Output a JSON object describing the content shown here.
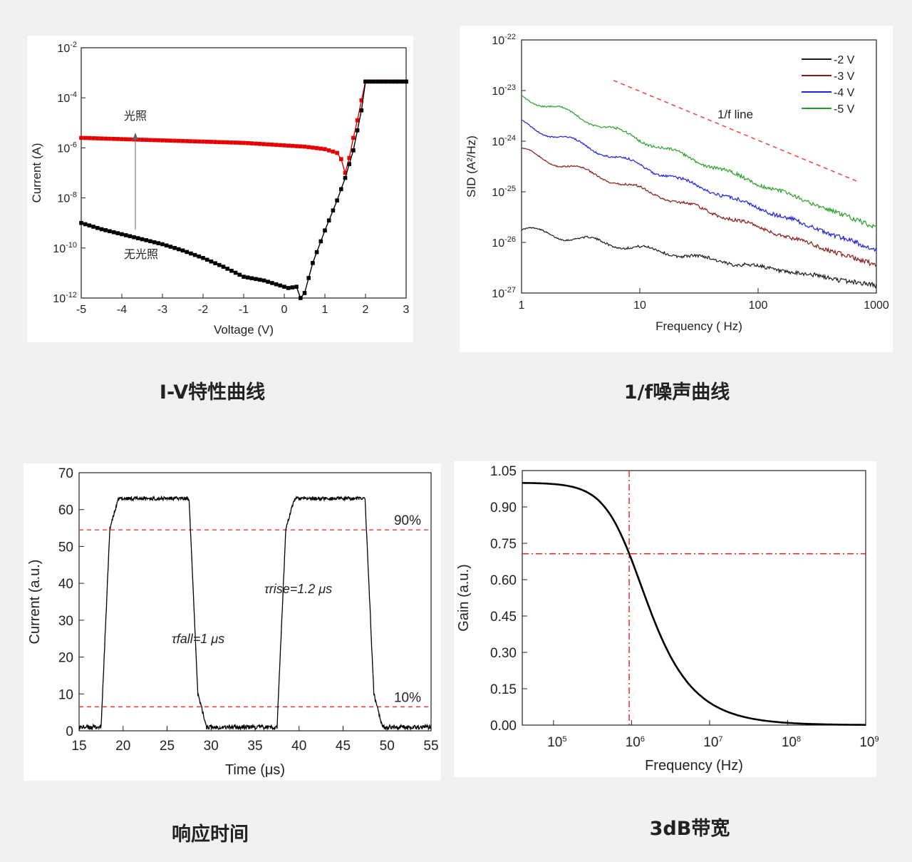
{
  "captions": {
    "iv": "I-V特性曲线",
    "noise": "1/f噪声曲线",
    "response": "响应时间",
    "bandwidth": "3dB带宽"
  },
  "chart_data": [
    {
      "id": "iv",
      "type": "line",
      "xlabel": "Voltage (V)",
      "ylabel": "Current (A)",
      "xlim": [
        -5,
        3
      ],
      "ylim_log10": [
        -12,
        -2
      ],
      "y_scale": "log",
      "x_ticks": [
        "-5",
        "-4",
        "-3",
        "-2",
        "-1",
        "0",
        "1",
        "2",
        "3"
      ],
      "y_tick_exponents": [
        "-2",
        "-4",
        "-6",
        "-8",
        "-10",
        "-12"
      ],
      "annotations": [
        "光照",
        "无光照"
      ],
      "series": [
        {
          "name": "光照",
          "color": "#e60000",
          "x": [
            -5,
            -4,
            -3,
            -2,
            -1,
            0,
            0.5,
            1,
            1.3,
            1.4,
            1.5,
            1.6,
            1.7,
            1.8,
            1.9,
            2,
            3
          ],
          "y_log10": [
            -5.6,
            -5.65,
            -5.7,
            -5.75,
            -5.8,
            -5.9,
            -5.95,
            -6.05,
            -6.2,
            -6.45,
            -7.0,
            -6.4,
            -5.6,
            -4.9,
            -4.1,
            -3.35,
            -3.35
          ]
        },
        {
          "name": "无光照",
          "color": "#000000",
          "x": [
            -5,
            -4.5,
            -4,
            -3.5,
            -3,
            -2.5,
            -2,
            -1.5,
            -1,
            -0.5,
            -0.2,
            0.1,
            0.3,
            0.4,
            0.5,
            0.7,
            1,
            1.3,
            1.5,
            1.7,
            1.9,
            2,
            3
          ],
          "y_log10": [
            -9.0,
            -9.25,
            -9.45,
            -9.65,
            -9.85,
            -10.1,
            -10.4,
            -10.75,
            -11.15,
            -11.3,
            -11.45,
            -11.6,
            -11.55,
            -12.0,
            -11.8,
            -10.6,
            -9.3,
            -8.1,
            -7.2,
            -6.1,
            -4.5,
            -3.35,
            -3.35
          ]
        }
      ]
    },
    {
      "id": "noise",
      "type": "line",
      "xlabel": "Frequency ( Hz)",
      "ylabel": "SID (A²/Hz)",
      "x_scale": "log",
      "y_scale": "log",
      "xlim": [
        1,
        1000
      ],
      "ylim_log10": [
        -27,
        -22
      ],
      "x_ticks": [
        "1",
        "10",
        "100",
        "1000"
      ],
      "y_tick_exponents": [
        "-22",
        "-23",
        "-24",
        "-25",
        "-26",
        "-27"
      ],
      "annotations": [
        "1/f line"
      ],
      "guide_line": {
        "x": [
          6,
          700
        ],
        "y_log10": [
          -22.8,
          -24.8
        ],
        "color": "#ee4444"
      },
      "series": [
        {
          "name": "-2 V",
          "color": "#1a1a1a",
          "start_log10": -25.75,
          "end_log10": -26.85
        },
        {
          "name": "-3 V",
          "color": "#8b1a1a",
          "start_log10": -24.2,
          "end_log10": -26.45
        },
        {
          "name": "-4 V",
          "color": "#1f1fe0",
          "start_log10": -23.65,
          "end_log10": -26.15
        },
        {
          "name": "-5 V",
          "color": "#2aa02a",
          "start_log10": -23.1,
          "end_log10": -25.7
        }
      ]
    },
    {
      "id": "response",
      "type": "line",
      "xlabel": "Time (μs)",
      "ylabel": "Current (a.u.)",
      "xlim": [
        15,
        55
      ],
      "ylim": [
        0,
        70
      ],
      "x_ticks": [
        "15",
        "20",
        "25",
        "30",
        "35",
        "40",
        "45",
        "50",
        "55"
      ],
      "y_ticks": [
        "0",
        "10",
        "20",
        "30",
        "40",
        "50",
        "60",
        "70"
      ],
      "threshold_lines": [
        {
          "label": "90%",
          "y": 54.5
        },
        {
          "label": "10%",
          "y": 6.5
        }
      ],
      "annotations": [
        "τfall=1 μs",
        "τrise=1.2 μs"
      ],
      "series": [
        {
          "name": "",
          "color": "#000000",
          "x": [
            15,
            17.5,
            18.5,
            19.5,
            27.5,
            28.5,
            29.5,
            37.5,
            38.5,
            39.5,
            47.5,
            48.5,
            49.5,
            55
          ],
          "y": [
            1,
            1,
            55,
            63,
            63,
            10,
            1,
            1,
            55,
            63,
            63,
            10,
            1,
            1
          ]
        }
      ]
    },
    {
      "id": "bandwidth",
      "type": "line",
      "xlabel": "Frequency (Hz)",
      "ylabel": "Gain (a.u.)",
      "x_scale": "log",
      "xlim_log10": [
        4.6,
        9
      ],
      "ylim": [
        0,
        1.05
      ],
      "x_tick_exponents": [
        "5",
        "6",
        "7",
        "8",
        "9"
      ],
      "y_ticks": [
        "1.05",
        "0.90",
        "0.75",
        "0.60",
        "0.45",
        "0.30",
        "0.15",
        "0.00"
      ],
      "cutoff": {
        "f_log10": 5.97,
        "gain": 0.707
      },
      "series": [
        {
          "name": "",
          "color": "#000000",
          "x_log10": [
            4.6,
            5,
            5.25,
            5.5,
            5.75,
            5.97,
            6.25,
            6.5,
            6.75,
            7,
            7.25,
            7.5,
            8,
            8.5,
            9
          ],
          "y": [
            1.0,
            0.99,
            0.97,
            0.92,
            0.82,
            0.707,
            0.5,
            0.3,
            0.16,
            0.08,
            0.035,
            0.015,
            0.002,
            0,
            0
          ]
        }
      ]
    }
  ]
}
